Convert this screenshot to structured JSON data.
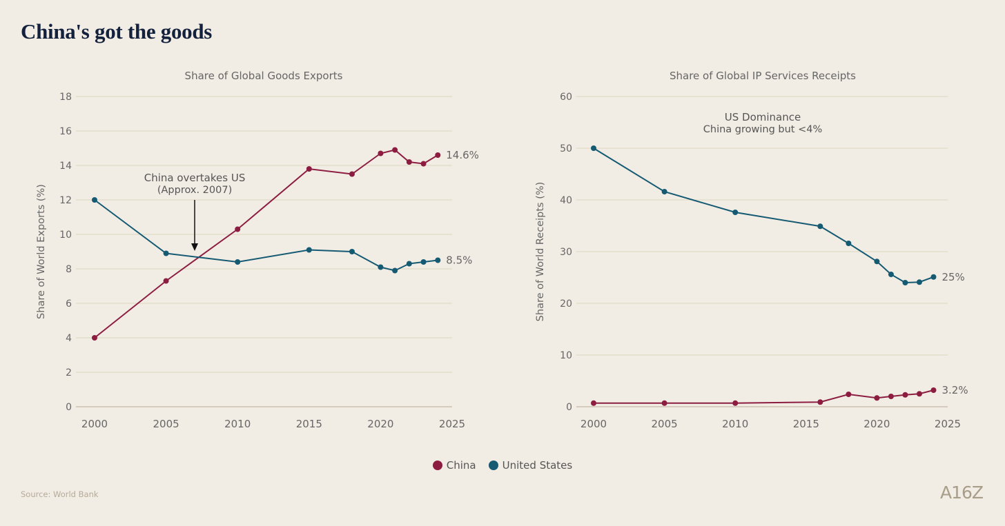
{
  "title": "China's got the goods",
  "legend": [
    {
      "name": "China",
      "color": "#8c1d40"
    },
    {
      "name": "United States",
      "color": "#145a72"
    }
  ],
  "source": "Source: World Bank",
  "logo": "A16Z",
  "chart_data": [
    {
      "type": "line",
      "title": "Share of Global Goods Exports",
      "ylabel": "Share of World Exports (%)",
      "xlabel": "",
      "xlim": [
        2000,
        2025
      ],
      "ylim": [
        0,
        18
      ],
      "xticks": [
        "2000",
        "2005",
        "2010",
        "2015",
        "2020",
        "2025"
      ],
      "yticks": [
        "0",
        "2",
        "4",
        "6",
        "8",
        "10",
        "12",
        "14",
        "16",
        "18"
      ],
      "grid": true,
      "legend_position": "bottom",
      "annotation": {
        "line1": "China overtakes US",
        "line2": "(Approx. 2007)",
        "x": 2007
      },
      "series": [
        {
          "name": "China",
          "color": "#8c1d40",
          "end_label": "14.6%",
          "x": [
            2000,
            2005,
            2010,
            2015,
            2018,
            2020,
            2021,
            2022,
            2023,
            2024
          ],
          "y": [
            4.0,
            7.3,
            10.3,
            13.8,
            13.5,
            14.7,
            14.9,
            14.2,
            14.1,
            14.6
          ]
        },
        {
          "name": "United States",
          "color": "#145a72",
          "end_label": "8.5%",
          "x": [
            2000,
            2005,
            2010,
            2015,
            2018,
            2020,
            2021,
            2022,
            2023,
            2024
          ],
          "y": [
            12.0,
            8.9,
            8.4,
            9.1,
            9.0,
            8.1,
            7.9,
            8.3,
            8.4,
            8.5
          ]
        }
      ]
    },
    {
      "type": "line",
      "title": "Share of Global IP Services Receipts",
      "ylabel": "Share of World Receipts (%)",
      "xlabel": "",
      "xlim": [
        2000,
        2025
      ],
      "ylim": [
        0,
        60
      ],
      "xticks": [
        "2000",
        "2005",
        "2010",
        "2015",
        "2020",
        "2025"
      ],
      "yticks": [
        "0",
        "10",
        "20",
        "30",
        "40",
        "50",
        "60"
      ],
      "grid": true,
      "legend_position": "bottom",
      "annotation": {
        "line1": "US Dominance",
        "line2": "China growing but <4%"
      },
      "series": [
        {
          "name": "United States",
          "color": "#145a72",
          "end_label": "25%",
          "x": [
            2000,
            2005,
            2010,
            2016,
            2018,
            2020,
            2021,
            2022,
            2023,
            2024
          ],
          "y": [
            50.0,
            41.6,
            37.6,
            34.9,
            31.6,
            28.1,
            25.6,
            24.0,
            24.1,
            25.1
          ]
        },
        {
          "name": "China",
          "color": "#8c1d40",
          "end_label": "3.2%",
          "x": [
            2000,
            2005,
            2010,
            2016,
            2018,
            2020,
            2021,
            2022,
            2023,
            2024
          ],
          "y": [
            0.7,
            0.7,
            0.7,
            0.9,
            2.4,
            1.7,
            2.0,
            2.3,
            2.5,
            3.2
          ]
        }
      ]
    }
  ]
}
